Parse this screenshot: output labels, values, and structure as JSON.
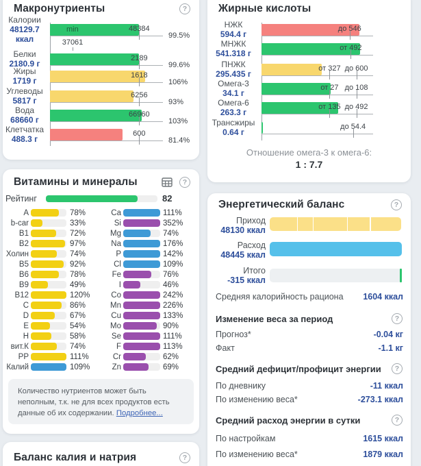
{
  "icons": {
    "help": "?"
  },
  "colors": {
    "green": "#2cc56e",
    "macro_yellow": "#f8d76d",
    "red": "#f5817e",
    "vit_yellow": "#f2d014",
    "blue": "#3e9ad6",
    "purple": "#9a4fad",
    "income_yellow": "#fbe088",
    "expense_blue": "#55c0ea",
    "total_track": "#edf0f2",
    "value_blue": "#2d4e9b"
  },
  "macronutrients": {
    "title": "Макронутриенты",
    "rows": [
      {
        "name": "Калории",
        "value": "48129.7 ккал",
        "pct": "99.5%",
        "color": "green",
        "bar_pct": 78.5,
        "ticks": [
          {
            "pos": 79,
            "label": "48384"
          }
        ],
        "bar_text": "min",
        "min_marker": {
          "pos": 20,
          "label": "37061"
        }
      },
      {
        "name": "Белки",
        "value": "2180.9 г",
        "pct": "99.6%",
        "color": "green",
        "bar_pct": 79,
        "ticks": [
          {
            "pos": 79,
            "label": "2189"
          }
        ]
      },
      {
        "name": "Жиры",
        "value": "1719 г",
        "pct": "106%",
        "color": "macro_yellow",
        "bar_pct": 84,
        "ticks": [
          {
            "pos": 79,
            "label": "1618"
          }
        ]
      },
      {
        "name": "Углеводы",
        "value": "5817 г",
        "pct": "93%",
        "color": "macro_yellow",
        "bar_pct": 74,
        "ticks": [
          {
            "pos": 79,
            "label": "6256"
          }
        ]
      },
      {
        "name": "Вода",
        "value": "68660 г",
        "pct": "103%",
        "color": "green",
        "bar_pct": 81.5,
        "ticks": [
          {
            "pos": 79,
            "label": "66960"
          }
        ]
      },
      {
        "name": "Клетчатка",
        "value": "488.3 г",
        "pct": "81.4%",
        "color": "red",
        "bar_pct": 64.5,
        "ticks": [
          {
            "pos": 79,
            "label": "600"
          }
        ]
      }
    ]
  },
  "fatty_acids": {
    "title": "Жирные кислоты",
    "rows": [
      {
        "name": "НЖК",
        "value": "594.4 г",
        "color": "red",
        "bar_pct": 88,
        "ticks": [
          {
            "pos": 79,
            "label": "до 546"
          }
        ]
      },
      {
        "name": "МНЖК",
        "value": "541.318 г",
        "color": "green",
        "bar_pct": 88.5,
        "ticks": [
          {
            "pos": 80,
            "label": "от 492"
          }
        ]
      },
      {
        "name": "ПНЖК",
        "value": "295.435 г",
        "color": "macro_yellow",
        "bar_pct": 54,
        "ticks": [
          {
            "pos": 61,
            "label": "от 327"
          },
          {
            "pos": 85,
            "label": "до 600"
          }
        ]
      },
      {
        "name": "Омега-3",
        "value": "34.1 г",
        "color": "green",
        "bar_pct": 62,
        "ticks": [
          {
            "pos": 61,
            "label": "от 27"
          },
          {
            "pos": 85,
            "label": "до 108"
          }
        ]
      },
      {
        "name": "Омега-6",
        "value": "263.3 г",
        "color": "green",
        "bar_pct": 68.5,
        "ticks": [
          {
            "pos": 61,
            "label": "от 135"
          },
          {
            "pos": 85,
            "label": "до 492"
          }
        ]
      },
      {
        "name": "Трансжиры",
        "value": "0.64 г",
        "color": "green",
        "bar_pct": 1.5,
        "ticks": [
          {
            "pos": 82,
            "label": "до 54.4"
          }
        ]
      }
    ],
    "ratio_label": "Отношение омега-3 к омега-6:",
    "ratio_value": "1 : 7.7"
  },
  "vitamins": {
    "title": "Витамины и минералы",
    "rating_label": "Рейтинг",
    "rating_value": "82",
    "rating_pct": 82,
    "left": [
      {
        "label": "A",
        "pct": 78,
        "text": "78%",
        "color": "vit_yellow"
      },
      {
        "label": "b-car",
        "pct": 33,
        "text": "33%",
        "color": "vit_yellow"
      },
      {
        "label": "B1",
        "pct": 72,
        "text": "72%",
        "color": "vit_yellow"
      },
      {
        "label": "B2",
        "pct": 97,
        "text": "97%",
        "color": "vit_yellow"
      },
      {
        "label": "Холин",
        "pct": 74,
        "text": "74%",
        "color": "vit_yellow"
      },
      {
        "label": "B5",
        "pct": 92,
        "text": "92%",
        "color": "vit_yellow"
      },
      {
        "label": "B6",
        "pct": 78,
        "text": "78%",
        "color": "vit_yellow"
      },
      {
        "label": "B9",
        "pct": 49,
        "text": "49%",
        "color": "vit_yellow"
      },
      {
        "label": "B12",
        "pct": 120,
        "text": "120%",
        "color": "vit_yellow"
      },
      {
        "label": "C",
        "pct": 86,
        "text": "86%",
        "color": "vit_yellow"
      },
      {
        "label": "D",
        "pct": 67,
        "text": "67%",
        "color": "vit_yellow"
      },
      {
        "label": "E",
        "pct": 54,
        "text": "54%",
        "color": "vit_yellow"
      },
      {
        "label": "H",
        "pct": 58,
        "text": "58%",
        "color": "vit_yellow"
      },
      {
        "label": "вит.К",
        "pct": 74,
        "text": "74%",
        "color": "vit_yellow"
      },
      {
        "label": "PP",
        "pct": 111,
        "text": "111%",
        "color": "vit_yellow"
      },
      {
        "label": "Калий",
        "pct": 109,
        "text": "109%",
        "color": "blue"
      }
    ],
    "right": [
      {
        "label": "Ca",
        "pct": 111,
        "text": "111%",
        "color": "blue"
      },
      {
        "label": "Si",
        "pct": 352,
        "text": "352%",
        "color": "purple"
      },
      {
        "label": "Mg",
        "pct": 74,
        "text": "74%",
        "color": "blue"
      },
      {
        "label": "Na",
        "pct": 176,
        "text": "176%",
        "color": "blue"
      },
      {
        "label": "P",
        "pct": 142,
        "text": "142%",
        "color": "blue"
      },
      {
        "label": "Cl",
        "pct": 109,
        "text": "109%",
        "color": "blue"
      },
      {
        "label": "Fe",
        "pct": 76,
        "text": "76%",
        "color": "purple"
      },
      {
        "label": "I",
        "pct": 46,
        "text": "46%",
        "color": "purple"
      },
      {
        "label": "Co",
        "pct": 242,
        "text": "242%",
        "color": "purple"
      },
      {
        "label": "Mn",
        "pct": 226,
        "text": "226%",
        "color": "purple"
      },
      {
        "label": "Cu",
        "pct": 133,
        "text": "133%",
        "color": "purple"
      },
      {
        "label": "Mo",
        "pct": 90,
        "text": "90%",
        "color": "purple"
      },
      {
        "label": "Se",
        "pct": 111,
        "text": "111%",
        "color": "purple"
      },
      {
        "label": "F",
        "pct": 113,
        "text": "113%",
        "color": "purple"
      },
      {
        "label": "Cr",
        "pct": 62,
        "text": "62%",
        "color": "purple"
      },
      {
        "label": "Zn",
        "pct": 69,
        "text": "69%",
        "color": "purple"
      }
    ],
    "note": "Количество нутриентов может быть неполным, т.к. не для всех продуктов есть данные об их содержании. ",
    "note_link": "Подробнее..."
  },
  "potassium": {
    "title": "Баланс калия и натрия"
  },
  "energy": {
    "title": "Энергетический баланс",
    "bars": [
      {
        "name": "Приход",
        "value": "48130 ккал",
        "kind": "income",
        "width_pct": 99.3,
        "separators": [
          20.7,
          32.7,
          58.9,
          76.2
        ]
      },
      {
        "name": "Расход",
        "value": "48445 ккал",
        "kind": "expense",
        "width_pct": 100
      },
      {
        "name": "Итого",
        "value": "-315 ккал",
        "kind": "total",
        "marker_pct": 98.5
      }
    ],
    "avg_label": "Средняя калорийность рациона",
    "avg_value": "1604 ккал",
    "sections": [
      {
        "heading": "Изменение веса за период",
        "rows": [
          {
            "label": "Прогноз*",
            "value": "-0.04 кг"
          },
          {
            "label": "Факт",
            "value": "-1.1 кг"
          }
        ]
      },
      {
        "heading": "Средний дефицит/профицит энергии",
        "rows": [
          {
            "label": "По дневнику",
            "value": "-11 ккал"
          },
          {
            "label": "По изменению веса*",
            "value": "-273.1 ккал"
          }
        ]
      },
      {
        "heading": "Средний расход энергии в сутки",
        "rows": [
          {
            "label": "По настройкам",
            "value": "1615 ккал"
          },
          {
            "label": "По изменению веса*",
            "value": "1879 ккал"
          }
        ]
      }
    ]
  }
}
